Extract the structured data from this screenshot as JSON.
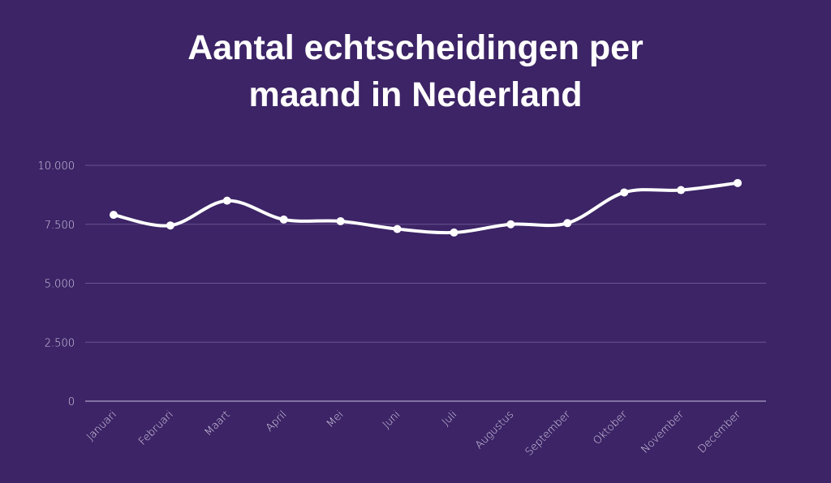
{
  "chart_data": {
    "type": "line",
    "title_lines": [
      "Aantal echtscheidingen per",
      "maand in Nederland"
    ],
    "categories": [
      "Januari",
      "Februari",
      "Maart",
      "April",
      "Mei",
      "Juni",
      "Juli",
      "Augustus",
      "September",
      "Oktober",
      "November",
      "December"
    ],
    "values": [
      7900,
      7450,
      8500,
      7700,
      7630,
      7300,
      7150,
      7500,
      7550,
      8850,
      8950,
      9250
    ],
    "ylim": [
      0,
      10000
    ],
    "yticks": [
      0,
      2500,
      5000,
      7500,
      10000
    ],
    "ytick_labels": [
      "0",
      "2.500",
      "5.000",
      "7.500",
      "10.000"
    ],
    "grid": true,
    "smooth": true,
    "colors": {
      "background": "#3c2466",
      "line": "#ffffff",
      "grid": "#6a5590",
      "tick_text": "#d8cfe6"
    }
  }
}
